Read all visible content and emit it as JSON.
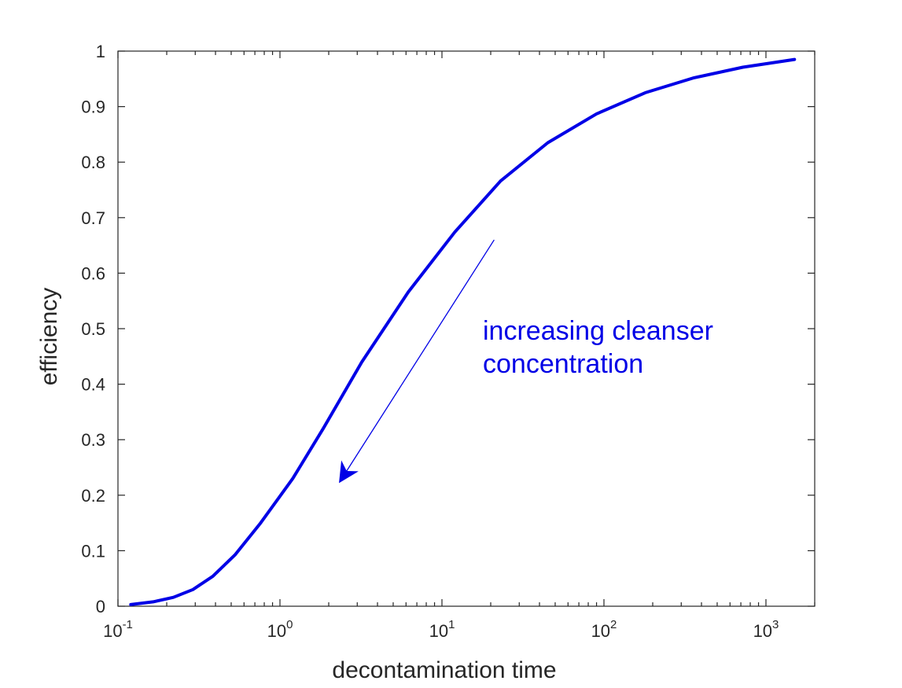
{
  "chart_data": {
    "type": "line",
    "xscale": "log",
    "xlabel": "decontamination time",
    "ylabel": "efficiency",
    "xlim": [
      0.1,
      2000
    ],
    "ylim": [
      0,
      1
    ],
    "grid": false,
    "xticks": [
      {
        "value": 0.1,
        "base": "10",
        "exp": "-1"
      },
      {
        "value": 1,
        "base": "10",
        "exp": "0"
      },
      {
        "value": 10,
        "base": "10",
        "exp": "1"
      },
      {
        "value": 100,
        "base": "10",
        "exp": "2"
      },
      {
        "value": 1000,
        "base": "10",
        "exp": "3"
      }
    ],
    "yticks": [
      "0",
      "0.1",
      "0.2",
      "0.3",
      "0.4",
      "0.5",
      "0.6",
      "0.7",
      "0.8",
      "0.9",
      "1"
    ],
    "series": [
      {
        "color": "#0000e6",
        "x": [
          0.12,
          0.165,
          0.22,
          0.29,
          0.385,
          0.53,
          0.76,
          1.2,
          1.85,
          3.2,
          6.2,
          12,
          23,
          45,
          90,
          180,
          360,
          720,
          1500
        ],
        "y": [
          0.003,
          0.008,
          0.016,
          0.03,
          0.054,
          0.093,
          0.15,
          0.23,
          0.32,
          0.44,
          0.566,
          0.674,
          0.766,
          0.835,
          0.887,
          0.925,
          0.952,
          0.971,
          0.985
        ]
      }
    ],
    "annotations": [
      {
        "text_lines": [
          "increasing cleanser",
          "concentration"
        ],
        "color": "#0000e6",
        "arrow": {
          "from": [
            21,
            0.66
          ],
          "to": [
            2.35,
            0.225
          ]
        }
      }
    ]
  }
}
